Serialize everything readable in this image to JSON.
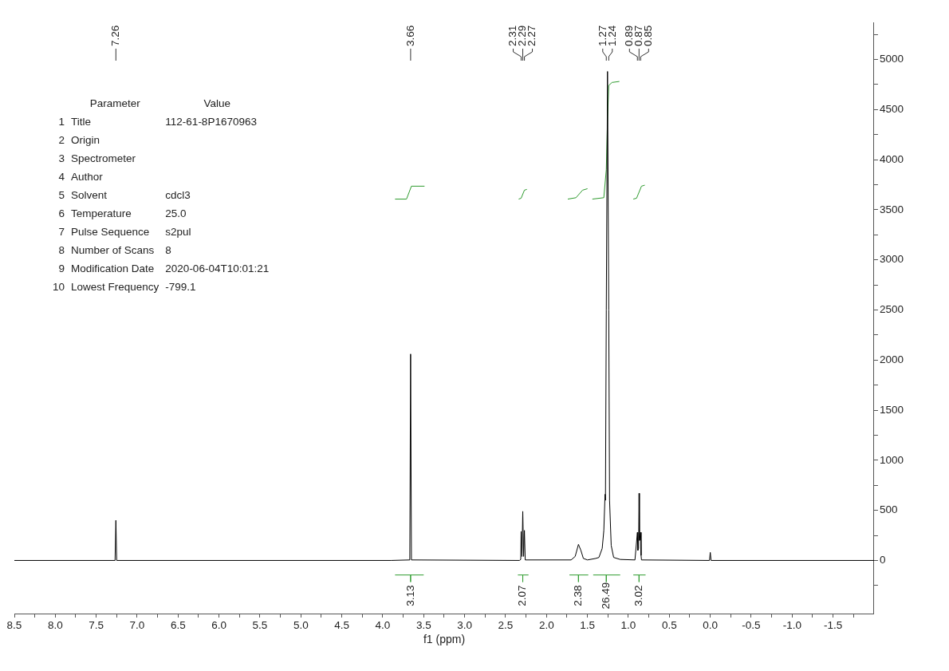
{
  "chart_data": {
    "type": "line",
    "xlabel": "f1 (ppm)",
    "xlim": [
      8.5,
      -2.0
    ],
    "ylim": [
      -530,
      5370
    ],
    "xticks": [
      8.5,
      {
        "value": 8.25,
        "label": null
      },
      {
        "value": 8,
        "label": "8.0"
      },
      {
        "value": 7.75,
        "label": null
      },
      7.5,
      {
        "value": 7.25,
        "label": null
      },
      {
        "value": 7,
        "label": "7.0"
      },
      {
        "value": 6.75,
        "label": null
      },
      6.5,
      {
        "value": 6.25,
        "label": null
      },
      {
        "value": 6,
        "label": "6.0"
      },
      {
        "value": 5.75,
        "label": null
      },
      5.5,
      {
        "value": 5.25,
        "label": null
      },
      {
        "value": 5,
        "label": "5.0"
      },
      {
        "value": 4.75,
        "label": null
      },
      4.5,
      {
        "value": 4.25,
        "label": null
      },
      {
        "value": 4,
        "label": "4.0"
      },
      {
        "value": 3.75,
        "label": null
      },
      3.5,
      {
        "value": 3.25,
        "label": null
      },
      {
        "value": 3,
        "label": "3.0"
      },
      {
        "value": 2.75,
        "label": null
      },
      2.5,
      {
        "value": 2.25,
        "label": null
      },
      {
        "value": 2,
        "label": "2.0"
      },
      {
        "value": 1.75,
        "label": null
      },
      1.5,
      {
        "value": 1.25,
        "label": null
      },
      {
        "value": 1,
        "label": "1.0"
      },
      {
        "value": 0.75,
        "label": null
      },
      0.5,
      {
        "value": 0.25,
        "label": null
      },
      {
        "value": 0,
        "label": "0.0"
      },
      {
        "value": -0.25,
        "label": null
      },
      -0.5,
      {
        "value": -0.75,
        "label": null
      },
      {
        "value": -1,
        "label": "-1.0"
      },
      {
        "value": -1.25,
        "label": null
      },
      -1.5,
      {
        "value": -1.75,
        "label": null
      }
    ],
    "yticks": [
      {
        "value": -250,
        "label": null
      },
      0,
      {
        "value": 250,
        "label": null
      },
      500,
      {
        "value": 750,
        "label": null
      },
      1000,
      {
        "value": 1250,
        "label": null
      },
      1500,
      {
        "value": 1750,
        "label": null
      },
      2000,
      {
        "value": 2250,
        "label": null
      },
      2500,
      {
        "value": 2750,
        "label": null
      },
      3000,
      {
        "value": 3250,
        "label": null
      },
      3500,
      {
        "value": 3750,
        "label": null
      },
      4000,
      {
        "value": 4250,
        "label": null
      },
      4500,
      {
        "value": 4750,
        "label": null
      },
      5000,
      {
        "value": 5250,
        "label": null
      }
    ],
    "ref_lines": [
      {
        "axis": "x",
        "value": 7.26,
        "label": "7.26"
      },
      {
        "axis": "x",
        "value": 3.66,
        "label": "3.66"
      },
      {
        "axis": "x",
        "value": 2.31,
        "label": "2.31"
      },
      {
        "axis": "x",
        "value": 2.29,
        "label": "2.29"
      },
      {
        "axis": "x",
        "value": 2.27,
        "label": "2.27"
      },
      {
        "axis": "x",
        "value": 1.27,
        "label": "1.27"
      },
      {
        "axis": "x",
        "value": 1.24,
        "label": "1.24"
      },
      {
        "axis": "x",
        "value": 0.89,
        "label": "0.89"
      },
      {
        "axis": "x",
        "value": 0.87,
        "label": "0.87"
      },
      {
        "axis": "x",
        "value": 0.85,
        "label": "0.85"
      }
    ],
    "legend": false,
    "marker": "none",
    "line_style": "solid",
    "series": [
      {
        "color": "#000000",
        "x": [
          8.5,
          7.27,
          7.26,
          7.25,
          3.9,
          3.67,
          3.66,
          3.65,
          2.33,
          2.315,
          2.31,
          2.3,
          2.29,
          2.28,
          2.27,
          2.26,
          1.7,
          1.65,
          1.62,
          1.61,
          1.6,
          1.58,
          1.55,
          1.5,
          1.4,
          1.36,
          1.32,
          1.3,
          1.285,
          1.28,
          1.27,
          1.255,
          1.24,
          1.23,
          1.21,
          1.18,
          1.1,
          0.92,
          0.89,
          0.885,
          0.875,
          0.87,
          0.865,
          0.85,
          0.845,
          0.84,
          0.01,
          0.0,
          -0.01,
          -2.0
        ],
        "values": [
          0,
          0,
          400,
          0,
          0,
          5,
          2060,
          5,
          0,
          10,
          290,
          40,
          490,
          40,
          300,
          5,
          5,
          40,
          130,
          160,
          140,
          100,
          20,
          5,
          20,
          30,
          120,
          300,
          660,
          600,
          2500,
          4880,
          2500,
          600,
          150,
          30,
          10,
          5,
          280,
          100,
          120,
          670,
          200,
          280,
          50,
          5,
          0,
          80,
          0,
          0
        ]
      },
      {
        "color": "#2e9b2e",
        "x": [
          3.85,
          3.71,
          3.65,
          3.49,
          null,
          2.34,
          2.31,
          2.27,
          2.24,
          null,
          1.74,
          1.64,
          1.56,
          1.5,
          null,
          1.44,
          1.3,
          1.27,
          1.255,
          1.24,
          1.2,
          1.11,
          null,
          0.94,
          0.9,
          0.84,
          0.8
        ],
        "values": [
          3606,
          3606,
          3735,
          3735,
          null,
          3606,
          3615,
          3695,
          3703,
          null,
          3606,
          3620,
          3695,
          3710,
          null,
          3606,
          3620,
          3900,
          4400,
          4740,
          4770,
          4780,
          null,
          3606,
          3615,
          3735,
          3745
        ]
      },
      {
        "color": "#2e9b2e",
        "x": [
          3.85,
          3.66,
          3.66,
          3.66,
          3.5,
          null,
          2.35,
          2.29,
          2.29,
          2.29,
          2.22,
          null,
          1.72,
          1.61,
          1.61,
          1.61,
          1.49,
          null,
          1.43,
          1.27,
          1.27,
          1.27,
          1.1,
          null,
          0.94,
          0.87,
          0.87,
          0.87,
          0.79
        ],
        "values": [
          -145,
          -145,
          -215,
          -145,
          -145,
          null,
          -145,
          -145,
          -215,
          -145,
          -145,
          null,
          -145,
          -145,
          -215,
          -145,
          -145,
          null,
          -145,
          -145,
          -215,
          -145,
          -145,
          null,
          -145,
          -145,
          -215,
          -145,
          -145
        ]
      }
    ],
    "annotations": [
      {
        "text": "3.13",
        "x": 3.66,
        "y": -145
      },
      {
        "text": "2.07",
        "x": 2.29,
        "y": -145
      },
      {
        "text": "2.38",
        "x": 1.61,
        "y": -145
      },
      {
        "text": "26.49",
        "x": 1.27,
        "y": -145
      },
      {
        "text": "3.02",
        "x": 0.87,
        "y": -145
      },
      "\tParameter\tValue",
      "1\tTitle\t112-61-8P1670963",
      "2\tOrigin",
      "3\tSpectrometer",
      "4\tAuthor",
      "5\tSolvent\tcdcl3",
      "6\tTemperature\t25.0",
      "7\tPulse Sequence\ts2pul",
      "8\tNumber of Scans\t8",
      "9\tModification Date\t2020-06-04T10:01:21",
      "10\tLowest Frequency\t-799.1"
    ]
  }
}
